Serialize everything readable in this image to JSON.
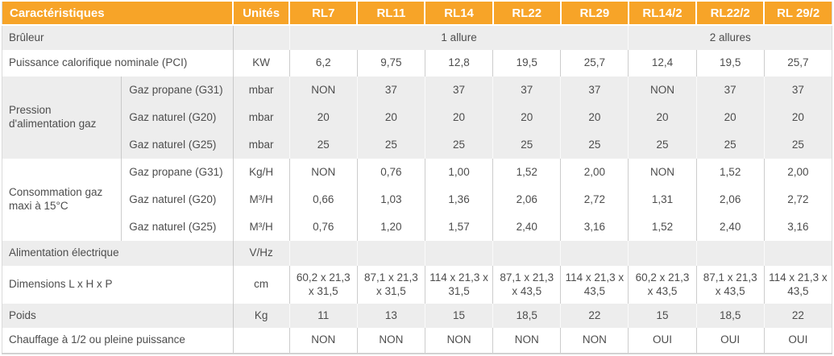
{
  "colors": {
    "header_orange": "#f7a428",
    "header_text": "#ffffff",
    "row_gray": "#ededed",
    "row_white": "#ffffff",
    "grid_line": "#cccccc",
    "body_text": "#4d4d4d"
  },
  "header": {
    "col_label": "Caractéristiques",
    "unit_label": "Unités",
    "models": [
      "RL7",
      "RL11",
      "RL14",
      "RL22",
      "RL29",
      "RL14/2",
      "RL22/2",
      "RL 29/2"
    ]
  },
  "rows": {
    "bruleur": {
      "label": "Brûleur",
      "unit": "",
      "allure1": "1 allure",
      "allure2": "2 allures"
    },
    "puissance": {
      "label": "Puissance calorifique nominale (PCI)",
      "unit": "KW",
      "values": [
        "6,2",
        "9,75",
        "12,8",
        "19,5",
        "25,7",
        "12,4",
        "19,5",
        "25,7"
      ]
    },
    "pression": {
      "label": "Pression d'alimentation gaz",
      "subrows": [
        {
          "label": "Gaz propane (G31)",
          "unit": "mbar",
          "values": [
            "NON",
            "37",
            "37",
            "37",
            "37",
            "NON",
            "37",
            "37"
          ]
        },
        {
          "label": "Gaz naturel (G20)",
          "unit": "mbar",
          "values": [
            "20",
            "20",
            "20",
            "20",
            "20",
            "20",
            "20",
            "20"
          ]
        },
        {
          "label": "Gaz naturel (G25)",
          "unit": "mbar",
          "values": [
            "25",
            "25",
            "25",
            "25",
            "25",
            "25",
            "25",
            "25"
          ]
        }
      ]
    },
    "consommation": {
      "label": "Consommation gaz maxi à 15°C",
      "subrows": [
        {
          "label": "Gaz propane (G31)",
          "unit": "Kg/H",
          "values": [
            "NON",
            "0,76",
            "1,00",
            "1,52",
            "2,00",
            "NON",
            "1,52",
            "2,00"
          ]
        },
        {
          "label": "Gaz naturel (G20)",
          "unit": "M³/H",
          "values": [
            "0,66",
            "1,03",
            "1,36",
            "2,06",
            "2,72",
            "1,31",
            "2,06",
            "2,72"
          ]
        },
        {
          "label": "Gaz naturel (G25)",
          "unit": "M³/H",
          "values": [
            "0,76",
            "1,20",
            "1,57",
            "2,40",
            "3,16",
            "1,52",
            "2,40",
            "3,16"
          ]
        }
      ]
    },
    "alimentation": {
      "label": "Alimentation électrique",
      "unit": "V/Hz",
      "values": [
        "",
        "",
        "",
        "",
        "",
        "",
        "",
        ""
      ]
    },
    "dimensions": {
      "label": "Dimensions L x H x P",
      "unit": "cm",
      "values": [
        "60,2 x 21,3 x 31,5",
        "87,1 x 21,3 x 31,5",
        "114 x 21,3 x 31,5",
        "87,1 x 21,3 x 43,5",
        "114 x 21,3 x 43,5",
        "60,2 x 21,3 x 43,5",
        "87,1 x 21,3 x 43,5",
        "114 x 21,3 x 43,5"
      ]
    },
    "poids": {
      "label": "Poids",
      "unit": "Kg",
      "values": [
        "11",
        "13",
        "15",
        "18,5",
        "22",
        "15",
        "18,5",
        "22"
      ]
    },
    "chauffage": {
      "label": "Chauffage à 1/2 ou pleine puissance",
      "unit": "",
      "values": [
        "NON",
        "NON",
        "NON",
        "NON",
        "NON",
        "OUI",
        "OUI",
        "OUI"
      ]
    }
  }
}
